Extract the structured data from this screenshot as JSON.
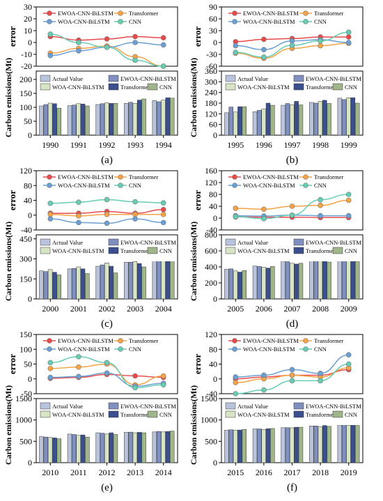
{
  "figure": {
    "error_ylabel": "error",
    "emis_ylabel": "Carbon emissions(Mt)",
    "line_legend": [
      "EWOA-CNN-BiLSTM",
      "Transformer",
      "WOA-CNN-BiLSTM",
      "CNN"
    ],
    "bar_legend": [
      "Actual Value",
      "EWOA-CNN-BiLSTM",
      "WOA-CNN-BiLSTM",
      "Transformer",
      "CNN"
    ],
    "line_colors": [
      "#e84a4a",
      "#f5a347",
      "#6a9fd4",
      "#66ccb4"
    ],
    "bar_colors": [
      "#b9c4dc",
      "#7f8fbf",
      "#d8e4c6",
      "#3b4f8f",
      "#9fb58a"
    ]
  },
  "chart_data": [
    {
      "type": "line+bar",
      "panel_label": "(a)",
      "x": [
        "1990",
        "1991",
        "1992",
        "1993",
        "1994"
      ],
      "error": {
        "ylim": [
          -20,
          30
        ],
        "yticks": [
          "-20",
          "-10",
          "0",
          "10",
          "20",
          "30"
        ],
        "series": [
          {
            "name": "EWOA-CNN-BiLSTM",
            "values": [
              5,
              2,
              3,
              5,
              4
            ]
          },
          {
            "name": "Transformer",
            "values": [
              -9,
              -5,
              -3,
              -12,
              -20
            ]
          },
          {
            "name": "WOA-CNN-BiLSTM",
            "values": [
              -11,
              -7,
              -4,
              0,
              -2
            ]
          },
          {
            "name": "CNN",
            "values": [
              7,
              0,
              -4,
              -15,
              -20
            ]
          }
        ]
      },
      "emissions": {
        "ylim": [
          0,
          230
        ],
        "yticks": [
          "0",
          "50",
          "100",
          "150",
          "200"
        ],
        "series": [
          {
            "name": "Actual Value",
            "values": [
              105,
              106,
              110,
              114,
              124
            ]
          },
          {
            "name": "EWOA-CNN-BiLSTM",
            "values": [
              110,
              108,
              113,
              118,
              120
            ]
          },
          {
            "name": "WOA-CNN-BiLSTM",
            "values": [
              115,
              113,
              116,
              114,
              126
            ]
          },
          {
            "name": "Transformer",
            "values": [
              113,
              112,
              114,
              126,
              142
            ]
          },
          {
            "name": "CNN",
            "values": [
              97,
              105,
              114,
              130,
              144
            ]
          }
        ]
      }
    },
    {
      "type": "line+bar",
      "panel_label": "(b)",
      "x": [
        "1995",
        "1996",
        "1997",
        "1998",
        "1999"
      ],
      "error": {
        "ylim": [
          -60,
          90
        ],
        "yticks": [
          "-60",
          "-30",
          "0",
          "30",
          "60",
          "90"
        ],
        "series": [
          {
            "name": "EWOA-CNN-BiLSTM",
            "values": [
              2,
              8,
              10,
              14,
              14
            ]
          },
          {
            "name": "Transformer",
            "values": [
              -27,
              -40,
              -15,
              -8,
              -2
            ]
          },
          {
            "name": "WOA-CNN-BiLSTM",
            "values": [
              -8,
              -18,
              4,
              7,
              0
            ]
          },
          {
            "name": "CNN",
            "values": [
              -25,
              -37,
              -7,
              4,
              26
            ]
          }
        ]
      },
      "emissions": {
        "ylim": [
          0,
          360
        ],
        "yticks": [
          "0",
          "60",
          "120",
          "180",
          "240",
          "300",
          "360"
        ],
        "series": [
          {
            "name": "Actual Value",
            "values": [
              126,
              132,
              168,
              184,
              208
            ]
          },
          {
            "name": "EWOA-CNN-BiLSTM",
            "values": [
              158,
              140,
              178,
              180,
              200
            ]
          },
          {
            "name": "WOA-CNN-BiLSTM",
            "values": [
              130,
              148,
              170,
              190,
              210
            ]
          },
          {
            "name": "Transformer",
            "values": [
              160,
              180,
              190,
              196,
              210
            ]
          },
          {
            "name": "CNN",
            "values": [
              160,
              168,
              170,
              178,
              180
            ]
          }
        ]
      }
    },
    {
      "type": "line+bar",
      "panel_label": "(c)",
      "x": [
        "2000",
        "2001",
        "2002",
        "2003",
        "2004"
      ],
      "error": {
        "ylim": [
          -40,
          120
        ],
        "yticks": [
          "-40",
          "0",
          "40",
          "80",
          "120"
        ],
        "series": [
          {
            "name": "EWOA-CNN-BiLSTM",
            "values": [
              5,
              5,
              10,
              5,
              15
            ]
          },
          {
            "name": "Transformer",
            "values": [
              2,
              -2,
              2,
              2,
              2
            ]
          },
          {
            "name": "WOA-CNN-BiLSTM",
            "values": [
              -10,
              -20,
              -22,
              -10,
              -20
            ]
          },
          {
            "name": "CNN",
            "values": [
              32,
              35,
              42,
              36,
              33
            ]
          }
        ]
      },
      "emissions": {
        "ylim": [
          0,
          480
        ],
        "yticks": [
          "0",
          "150",
          "300",
          "450"
        ],
        "series": [
          {
            "name": "Actual Value",
            "values": [
              210,
              225,
              245,
              275,
              320
            ]
          },
          {
            "name": "EWOA-CNN-BiLSTM",
            "values": [
              205,
              228,
              255,
              275,
              328
            ]
          },
          {
            "name": "WOA-CNN-BiLSTM",
            "values": [
              220,
              240,
              270,
              280,
              340
            ]
          },
          {
            "name": "Transformer",
            "values": [
              200,
              225,
              245,
              265,
              320
            ]
          },
          {
            "name": "CNN",
            "values": [
              180,
              190,
              195,
              240,
              290
            ]
          }
        ]
      }
    },
    {
      "type": "line+bar",
      "panel_label": "(d)",
      "x": [
        "2005",
        "2006",
        "2007",
        "2008",
        "2009"
      ],
      "error": {
        "ylim": [
          -40,
          160
        ],
        "yticks": [
          "-40",
          "0",
          "40",
          "80",
          "120",
          "160"
        ],
        "series": [
          {
            "name": "EWOA-CNN-BiLSTM",
            "values": [
              4,
              3,
              3,
              2,
              2
            ]
          },
          {
            "name": "Transformer",
            "values": [
              33,
              30,
              40,
              43,
              60
            ]
          },
          {
            "name": "WOA-CNN-BiLSTM",
            "values": [
              8,
              7,
              10,
              8,
              8
            ]
          },
          {
            "name": "CNN",
            "values": [
              5,
              -2,
              10,
              62,
              80
            ]
          }
        ]
      },
      "emissions": {
        "ylim": [
          0,
          800
        ],
        "yticks": [
          "0",
          "200",
          "400",
          "600",
          "800"
        ],
        "series": [
          {
            "name": "Actual Value",
            "values": [
              370,
              410,
              470,
              520,
              555
            ]
          },
          {
            "name": "EWOA-CNN-BiLSTM",
            "values": [
              375,
              405,
              465,
              520,
              555
            ]
          },
          {
            "name": "WOA-CNN-BiLSTM",
            "values": [
              350,
              395,
              445,
              490,
              535
            ]
          },
          {
            "name": "Transformer",
            "values": [
              335,
              385,
              435,
              485,
              515
            ]
          },
          {
            "name": "CNN",
            "values": [
              355,
              405,
              445,
              460,
              470
            ]
          }
        ]
      }
    },
    {
      "type": "line+bar",
      "panel_label": "(e)",
      "x": [
        "2010",
        "2011",
        "2012",
        "2013",
        "2014"
      ],
      "error": {
        "ylim": [
          -50,
          150
        ],
        "yticks": [
          "-50",
          "0",
          "50",
          "100",
          "150"
        ],
        "series": [
          {
            "name": "EWOA-CNN-BiLSTM",
            "values": [
              2,
              5,
              15,
              10,
              5
            ]
          },
          {
            "name": "Transformer",
            "values": [
              35,
              40,
              50,
              -20,
              10
            ]
          },
          {
            "name": "WOA-CNN-BiLSTM",
            "values": [
              5,
              8,
              20,
              -25,
              -15
            ]
          },
          {
            "name": "CNN",
            "values": [
              55,
              75,
              55,
              -30,
              -20
            ]
          }
        ]
      },
      "emissions": {
        "ylim": [
          0,
          1500
        ],
        "yticks": [
          "0",
          "500",
          "1000",
          "1500"
        ],
        "series": [
          {
            "name": "Actual Value",
            "values": [
              610,
              670,
              700,
              710,
              720
            ]
          },
          {
            "name": "EWOA-CNN-BiLSTM",
            "values": [
              600,
              660,
              690,
              715,
              730
            ]
          },
          {
            "name": "WOA-CNN-BiLSTM",
            "values": [
              590,
              640,
              670,
              700,
              720
            ]
          },
          {
            "name": "Transformer",
            "values": [
              580,
              650,
              700,
              710,
              730
            ]
          },
          {
            "name": "CNN",
            "values": [
              560,
              600,
              660,
              700,
              740
            ]
          }
        ]
      }
    },
    {
      "type": "line+bar",
      "panel_label": "(f)",
      "x": [
        "2015",
        "2016",
        "2017",
        "2018",
        "2019"
      ],
      "error": {
        "ylim": [
          -40,
          120
        ],
        "yticks": [
          "-40",
          "0",
          "40",
          "80",
          "120"
        ],
        "series": [
          {
            "name": "EWOA-CNN-BiLSTM",
            "values": [
              0,
              5,
              10,
              10,
              25
            ]
          },
          {
            "name": "Transformer",
            "values": [
              -10,
              0,
              10,
              5,
              30
            ]
          },
          {
            "name": "WOA-CNN-BiLSTM",
            "values": [
              5,
              10,
              25,
              15,
              65
            ]
          },
          {
            "name": "CNN",
            "values": [
              -40,
              -30,
              -5,
              -5,
              40
            ]
          }
        ]
      },
      "emissions": {
        "ylim": [
          0,
          1500
        ],
        "yticks": [
          "0",
          "500",
          "1000",
          "1500"
        ],
        "series": [
          {
            "name": "Actual Value",
            "values": [
              760,
              790,
              820,
              860,
              880
            ]
          },
          {
            "name": "EWOA-CNN-BiLSTM",
            "values": [
              770,
              790,
              820,
              860,
              900
            ]
          },
          {
            "name": "WOA-CNN-BiLSTM",
            "values": [
              760,
              780,
              815,
              840,
              870
            ]
          },
          {
            "name": "Transformer",
            "values": [
              765,
              795,
              830,
              870,
              880
            ]
          },
          {
            "name": "CNN",
            "values": [
              780,
              800,
              830,
              850,
              870
            ]
          }
        ]
      }
    }
  ]
}
